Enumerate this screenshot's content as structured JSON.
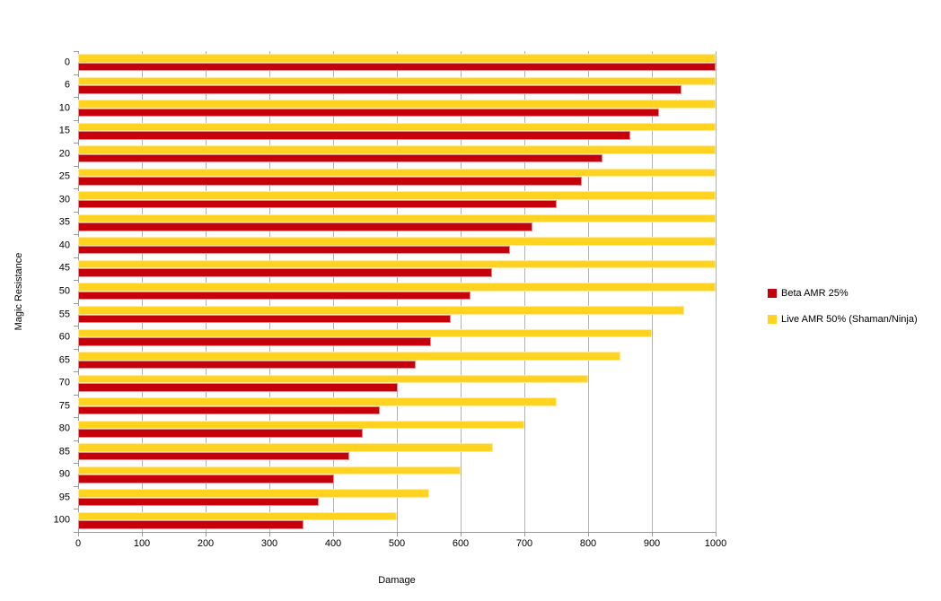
{
  "chart_data": {
    "type": "bar",
    "orientation": "horizontal",
    "xlabel": "Damage",
    "ylabel": "Magic Resistance",
    "xlim": [
      0,
      1000
    ],
    "x_ticks": [
      0,
      100,
      200,
      300,
      400,
      500,
      600,
      700,
      800,
      900,
      1000
    ],
    "grid": "vertical",
    "legend_position": "right",
    "categories": [
      0,
      6,
      10,
      15,
      20,
      25,
      30,
      35,
      40,
      45,
      50,
      55,
      60,
      65,
      70,
      75,
      80,
      85,
      90,
      95,
      100
    ],
    "series": [
      {
        "name": "Beta AMR 25%",
        "color": "#c5000b",
        "values": [
          1000,
          946,
          911,
          866,
          823,
          790,
          751,
          712,
          678,
          649,
          616,
          584,
          554,
          529,
          501,
          473,
          446,
          425,
          401,
          377,
          354
        ]
      },
      {
        "name": "Live AMR 50% (Shaman/Ninja)",
        "color": "#ffd320",
        "values": [
          1000,
          1000,
          1000,
          1000,
          1000,
          1000,
          1000,
          1000,
          1000,
          1000,
          1000,
          950,
          900,
          850,
          800,
          750,
          700,
          650,
          600,
          550,
          500
        ]
      }
    ],
    "colors": {
      "gridline": "#b3b3b3",
      "axis": "#9a9a9a",
      "background": "#ffffff"
    }
  }
}
